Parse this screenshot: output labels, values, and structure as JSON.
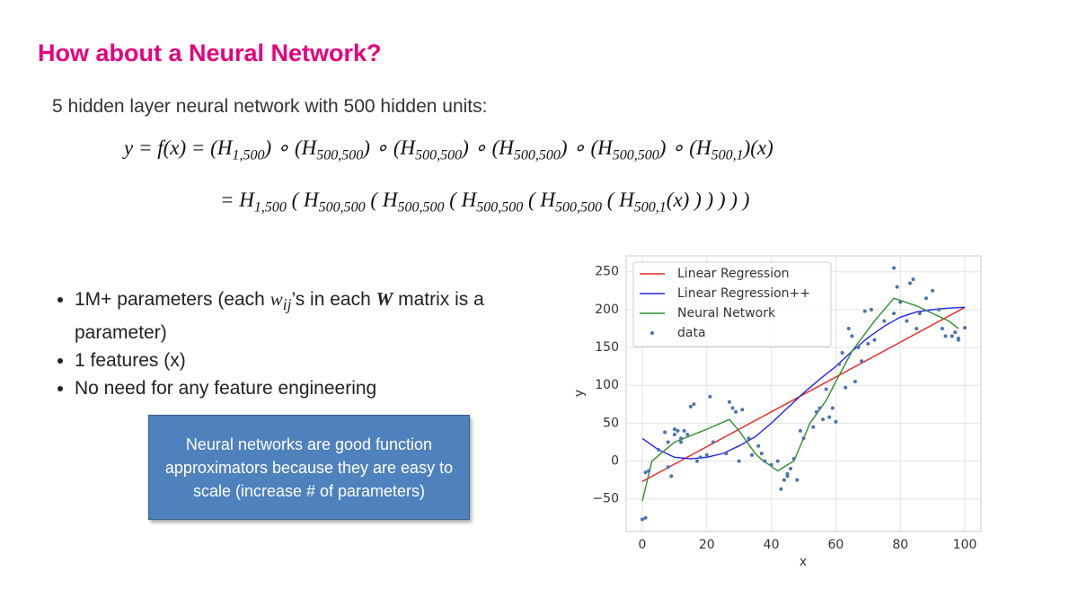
{
  "slide": {
    "title": "How about a Neural Network?",
    "intro": "5 hidden layer neural network with 500 hidden units:",
    "equation_line1": [
      "y = f(x) = (H",
      "1,500",
      ") ∘ (H",
      "500,500",
      ") ∘ (H",
      "500,500",
      ") ∘ (H",
      "500,500",
      ") ∘ (H",
      "500,500",
      ") ∘ (H",
      "500,1",
      ")(x)"
    ],
    "equation_line2": [
      "= H",
      "1,500",
      " ( H",
      "500,500",
      " ( H",
      "500,500",
      " ( H",
      "500,500",
      " ( H",
      "500,500",
      " ( H",
      "500,1",
      "(x) ) ) ) ) )"
    ],
    "bullets": [
      [
        "1M+ parameters (each ",
        "w",
        "ij",
        "’s in each ",
        "W",
        " matrix is a parameter)"
      ],
      [
        "1 features (x)"
      ],
      [
        "No need for any feature engineering"
      ]
    ],
    "callout": "Neural networks are good function approximators because they are easy to scale (increase # of parameters)"
  },
  "chart_data": {
    "type": "line",
    "xlabel": "x",
    "ylabel": "y",
    "xlim": [
      -5,
      105
    ],
    "ylim": [
      -93,
      271
    ],
    "xticks": [
      0,
      20,
      40,
      60,
      80,
      100
    ],
    "yticks": [
      {
        "value": -50,
        "label": "−50"
      },
      0,
      50,
      100,
      150,
      200,
      250
    ],
    "grid": true,
    "legend": "upper-left",
    "series": [
      {
        "name": "Linear Regression",
        "color": "#ee2222",
        "type": "line",
        "x": [
          0,
          100
        ],
        "values": [
          -27,
          203
        ]
      },
      {
        "name": "Linear Regression++",
        "color": "#2222ee",
        "type": "line",
        "x": [
          0,
          5,
          10,
          15,
          20,
          25,
          30,
          35,
          40,
          45,
          50,
          55,
          60,
          65,
          70,
          75,
          80,
          85,
          90,
          95,
          100
        ],
        "values": [
          30,
          15,
          5,
          3,
          5,
          10,
          20,
          32,
          50,
          70,
          90,
          108,
          125,
          145,
          163,
          178,
          190,
          197,
          200,
          202,
          203
        ]
      },
      {
        "name": "Neural Network",
        "color": "#2a8f2a",
        "type": "line",
        "x": [
          0,
          3,
          10,
          20,
          27,
          30,
          35,
          37,
          42,
          45,
          47,
          52,
          57,
          60,
          65,
          72,
          78,
          85,
          90,
          95,
          98
        ],
        "values": [
          -53,
          0,
          25,
          42,
          55,
          40,
          10,
          2,
          -13,
          -5,
          0,
          50,
          80,
          105,
          145,
          185,
          215,
          205,
          195,
          185,
          175
        ]
      },
      {
        "name": "data",
        "color": "#4c72b0",
        "type": "scatter",
        "x": [
          0,
          1,
          1,
          2,
          5,
          7,
          8,
          8,
          9,
          10,
          10,
          11,
          12,
          12,
          13,
          14,
          15,
          16,
          17,
          18,
          20,
          21,
          22,
          26,
          27,
          28,
          29,
          30,
          31,
          33,
          34,
          36,
          37,
          38,
          40,
          42,
          43,
          44,
          45,
          45,
          46,
          47,
          48,
          49,
          50,
          53,
          54,
          55,
          56,
          57,
          58,
          59,
          60,
          61,
          62,
          63,
          64,
          65,
          66,
          67,
          68,
          69,
          70,
          71,
          72,
          75,
          78,
          78,
          79,
          80,
          82,
          83,
          84,
          85,
          86,
          88,
          90,
          92,
          93,
          94,
          96,
          97,
          98,
          98,
          100
        ],
        "values": [
          -77,
          -75,
          -15,
          -13,
          15,
          38,
          -8,
          25,
          -20,
          42,
          35,
          40,
          30,
          25,
          40,
          35,
          72,
          75,
          0,
          5,
          8,
          85,
          25,
          10,
          78,
          70,
          65,
          0,
          68,
          30,
          8,
          20,
          10,
          0,
          -5,
          0,
          -37,
          -25,
          -17,
          -20,
          -10,
          3,
          -25,
          40,
          30,
          45,
          65,
          70,
          55,
          95,
          58,
          70,
          52,
          128,
          143,
          97,
          175,
          165,
          105,
          150,
          132,
          198,
          155,
          200,
          160,
          185,
          255,
          195,
          230,
          210,
          185,
          235,
          240,
          175,
          195,
          215,
          225,
          200,
          175,
          165,
          165,
          170,
          160,
          162,
          176
        ]
      }
    ]
  }
}
